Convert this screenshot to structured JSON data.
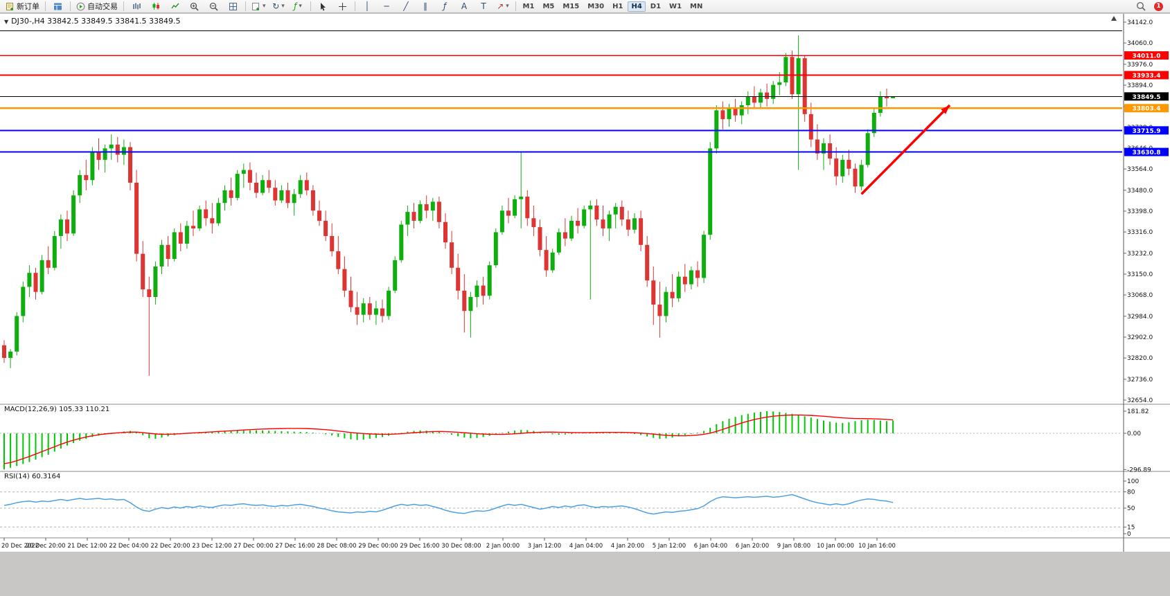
{
  "toolbar": {
    "new_order_label": "新订单",
    "autotrade_label": "自动交易",
    "timeframes": [
      "M1",
      "M5",
      "M15",
      "M30",
      "H1",
      "H4",
      "D1",
      "W1",
      "MN"
    ],
    "active_timeframe": "H4",
    "notification_count": "1"
  },
  "tools": {
    "vline": "│",
    "hline": "─",
    "trend": "╱",
    "channel": "∥",
    "fibo": "ƒ",
    "text": "A",
    "label": "T",
    "arrow": "↗",
    "dropdown": "▾",
    "collapse": "▼",
    "refresh": "↻",
    "shift_marker": "▲"
  },
  "chart": {
    "title": "DJ30-,H4  33842.5 33849.5 33841.5 33849.5",
    "symbol": "DJ30-",
    "period": "H4",
    "ohlc": "33842.5 33849.5 33841.5 33849.5"
  },
  "macd_label": "MACD(12,26,9) 105.33 110.21",
  "rsi_label": "RSI(14) 60.3164",
  "chart_data": {
    "type": "candlestick+indicators",
    "up_color": "#0fae0f",
    "down_color": "#dd3434",
    "price_axis": {
      "min": 32654.0,
      "max": 34142.0,
      "labels": [
        "34142.0",
        "34060.0",
        "33976.0",
        "33894.0",
        "33810.0",
        "33728.0",
        "33646.0",
        "33564.0",
        "33480.0",
        "33398.0",
        "33316.0",
        "33232.0",
        "33150.0",
        "33068.0",
        "32984.0",
        "32902.0",
        "32820.0",
        "32736.0",
        "32654.0"
      ]
    },
    "time_labels": [
      "20 Dec 2022",
      "20 Dec 20:00",
      "21 Dec 12:00",
      "22 Dec 04:00",
      "22 Dec 20:00",
      "23 Dec 12:00",
      "27 Dec 00:00",
      "27 Dec 16:00",
      "28 Dec 08:00",
      "29 Dec 00:00",
      "29 Dec 16:00",
      "30 Dec 08:00",
      "2 Jan 00:00",
      "3 Jan 12:00",
      "4 Jan 04:00",
      "4 Jan 20:00",
      "5 Jan 12:00",
      "6 Jan 04:00",
      "6 Jan 20:00",
      "9 Jan 08:00",
      "10 Jan 00:00",
      "10 Jan 16:00"
    ],
    "hlines": [
      {
        "price": 34108,
        "color": "#000000",
        "width": 1,
        "label": null
      },
      {
        "price": 34011.0,
        "color": "#ff0000",
        "width": 1.6,
        "label": "34011.0"
      },
      {
        "price": 33933.4,
        "color": "#ff0000",
        "width": 1.6,
        "label": "33933.4"
      },
      {
        "price": 33849.5,
        "color": "#000000",
        "width": 1,
        "label": "33849.5"
      },
      {
        "price": 33803.4,
        "color": "#ff9800",
        "width": 2.2,
        "label": "33803.4"
      },
      {
        "price": 33715.9,
        "color": "#0000ff",
        "width": 2.2,
        "label": "33715.9"
      },
      {
        "price": 33630.8,
        "color": "#0000ff",
        "width": 2.2,
        "label": "33630.8"
      }
    ],
    "arrow": {
      "from_bar": 136,
      "from_price": 33465,
      "to_bar": 150,
      "to_price": 33815,
      "color": "#ff0000"
    },
    "candles": [
      [
        32870,
        32890,
        32800,
        32820
      ],
      [
        32820,
        32855,
        32780,
        32845
      ],
      [
        32845,
        33000,
        32830,
        32985
      ],
      [
        32985,
        33120,
        32960,
        33100
      ],
      [
        33100,
        33185,
        33060,
        33155
      ],
      [
        33155,
        33175,
        33050,
        33080
      ],
      [
        33080,
        33225,
        33070,
        33205
      ],
      [
        33205,
        33260,
        33150,
        33175
      ],
      [
        33175,
        33320,
        33165,
        33300
      ],
      [
        33300,
        33385,
        33250,
        33365
      ],
      [
        33365,
        33400,
        33280,
        33310
      ],
      [
        33310,
        33480,
        33300,
        33460
      ],
      [
        33460,
        33560,
        33430,
        33540
      ],
      [
        33540,
        33600,
        33480,
        33520
      ],
      [
        33520,
        33650,
        33500,
        33630
      ],
      [
        33630,
        33685,
        33560,
        33600
      ],
      [
        33600,
        33660,
        33550,
        33645
      ],
      [
        33645,
        33700,
        33600,
        33660
      ],
      [
        33660,
        33690,
        33590,
        33620
      ],
      [
        33620,
        33680,
        33580,
        33650
      ],
      [
        33650,
        33670,
        33480,
        33510
      ],
      [
        33510,
        33560,
        33200,
        33230
      ],
      [
        33230,
        33280,
        33060,
        33090
      ],
      [
        33090,
        33140,
        32750,
        33060
      ],
      [
        33060,
        33200,
        33030,
        33180
      ],
      [
        33180,
        33285,
        33150,
        33265
      ],
      [
        33265,
        33300,
        33180,
        33210
      ],
      [
        33210,
        33330,
        33200,
        33315
      ],
      [
        33315,
        33350,
        33240,
        33270
      ],
      [
        33270,
        33360,
        33250,
        33340
      ],
      [
        33340,
        33400,
        33300,
        33330
      ],
      [
        33330,
        33420,
        33320,
        33405
      ],
      [
        33405,
        33440,
        33340,
        33370
      ],
      [
        33370,
        33430,
        33310,
        33350
      ],
      [
        33350,
        33450,
        33340,
        33430
      ],
      [
        33430,
        33500,
        33400,
        33480
      ],
      [
        33480,
        33530,
        33420,
        33450
      ],
      [
        33450,
        33560,
        33440,
        33545
      ],
      [
        33545,
        33585,
        33490,
        33560
      ],
      [
        33560,
        33590,
        33480,
        33510
      ],
      [
        33510,
        33550,
        33450,
        33470
      ],
      [
        33470,
        33540,
        33460,
        33520
      ],
      [
        33520,
        33560,
        33470,
        33490
      ],
      [
        33490,
        33520,
        33420,
        33440
      ],
      [
        33440,
        33500,
        33430,
        33480
      ],
      [
        33480,
        33510,
        33410,
        33430
      ],
      [
        33430,
        33485,
        33380,
        33465
      ],
      [
        33465,
        33540,
        33450,
        33520
      ],
      [
        33520,
        33550,
        33460,
        33480
      ],
      [
        33480,
        33500,
        33380,
        33400
      ],
      [
        33400,
        33440,
        33340,
        33360
      ],
      [
        33360,
        33400,
        33280,
        33300
      ],
      [
        33300,
        33350,
        33220,
        33240
      ],
      [
        33240,
        33300,
        33150,
        33170
      ],
      [
        33170,
        33220,
        33060,
        33085
      ],
      [
        33085,
        33140,
        33000,
        33020
      ],
      [
        33020,
        33080,
        32950,
        32990
      ],
      [
        32990,
        33055,
        32960,
        33035
      ],
      [
        33035,
        33060,
        32970,
        32990
      ],
      [
        32990,
        33045,
        32950,
        33015
      ],
      [
        33015,
        33050,
        32960,
        32985
      ],
      [
        32985,
        33100,
        32970,
        33085
      ],
      [
        33085,
        33220,
        33075,
        33205
      ],
      [
        33205,
        33360,
        33195,
        33345
      ],
      [
        33345,
        33420,
        33300,
        33395
      ],
      [
        33395,
        33430,
        33330,
        33360
      ],
      [
        33360,
        33440,
        33350,
        33425
      ],
      [
        33425,
        33460,
        33370,
        33400
      ],
      [
        33400,
        33450,
        33360,
        33435
      ],
      [
        33435,
        33455,
        33330,
        33355
      ],
      [
        33355,
        33390,
        33250,
        33275
      ],
      [
        33275,
        33320,
        33150,
        33175
      ],
      [
        33175,
        33230,
        33050,
        33085
      ],
      [
        33085,
        33150,
        32920,
        33005
      ],
      [
        33005,
        33080,
        32900,
        33060
      ],
      [
        33060,
        33125,
        33020,
        33105
      ],
      [
        33105,
        33140,
        33030,
        33065
      ],
      [
        33065,
        33200,
        33050,
        33185
      ],
      [
        33185,
        33330,
        33175,
        33315
      ],
      [
        33315,
        33420,
        33305,
        33400
      ],
      [
        33400,
        33450,
        33350,
        33380
      ],
      [
        33380,
        33460,
        33370,
        33445
      ],
      [
        33445,
        33630,
        33330,
        33455
      ],
      [
        33455,
        33480,
        33340,
        33370
      ],
      [
        33370,
        33420,
        33300,
        33335
      ],
      [
        33335,
        33365,
        33220,
        33245
      ],
      [
        33245,
        33300,
        33140,
        33165
      ],
      [
        33165,
        33250,
        33155,
        33235
      ],
      [
        33235,
        33330,
        33225,
        33315
      ],
      [
        33315,
        33370,
        33260,
        33290
      ],
      [
        33290,
        33380,
        33280,
        33360
      ],
      [
        33360,
        33410,
        33310,
        33340
      ],
      [
        33340,
        33420,
        33330,
        33405
      ],
      [
        33405,
        33440,
        33050,
        33420
      ],
      [
        33420,
        33445,
        33340,
        33365
      ],
      [
        33365,
        33420,
        33300,
        33330
      ],
      [
        33330,
        33400,
        33280,
        33385
      ],
      [
        33385,
        33430,
        33330,
        33415
      ],
      [
        33415,
        33440,
        33340,
        33365
      ],
      [
        33365,
        33400,
        33300,
        33325
      ],
      [
        33325,
        33390,
        33310,
        33370
      ],
      [
        33370,
        33400,
        33240,
        33265
      ],
      [
        33265,
        33300,
        33100,
        33125
      ],
      [
        33125,
        33180,
        32950,
        33030
      ],
      [
        33030,
        33120,
        32900,
        32985
      ],
      [
        32985,
        33100,
        32960,
        33080
      ],
      [
        33080,
        33150,
        33020,
        33055
      ],
      [
        33055,
        33160,
        33040,
        33140
      ],
      [
        33140,
        33190,
        33080,
        33110
      ],
      [
        33110,
        33180,
        33090,
        33165
      ],
      [
        33165,
        33200,
        33100,
        33135
      ],
      [
        33135,
        33320,
        33115,
        33305
      ],
      [
        33305,
        33670,
        33285,
        33645
      ],
      [
        33645,
        33815,
        33625,
        33795
      ],
      [
        33795,
        33830,
        33720,
        33760
      ],
      [
        33760,
        33820,
        33730,
        33805
      ],
      [
        33805,
        33840,
        33750,
        33775
      ],
      [
        33775,
        33830,
        33740,
        33815
      ],
      [
        33815,
        33870,
        33780,
        33850
      ],
      [
        33850,
        33890,
        33800,
        33825
      ],
      [
        33825,
        33880,
        33800,
        33865
      ],
      [
        33865,
        33900,
        33810,
        33840
      ],
      [
        33840,
        33910,
        33820,
        33895
      ],
      [
        33895,
        33945,
        33855,
        33905
      ],
      [
        33905,
        34020,
        33890,
        34005
      ],
      [
        34005,
        34030,
        33840,
        33858
      ],
      [
        33858,
        34090,
        33560,
        34000
      ],
      [
        34000,
        34010,
        33750,
        33780
      ],
      [
        33780,
        33825,
        33650,
        33680
      ],
      [
        33680,
        33740,
        33600,
        33625
      ],
      [
        33625,
        33685,
        33560,
        33665
      ],
      [
        33665,
        33700,
        33580,
        33605
      ],
      [
        33605,
        33650,
        33500,
        33535
      ],
      [
        33535,
        33620,
        33510,
        33600
      ],
      [
        33600,
        33640,
        33540,
        33565
      ],
      [
        33565,
        33585,
        33470,
        33495
      ],
      [
        33495,
        33600,
        33480,
        33580
      ],
      [
        33580,
        33720,
        33570,
        33705
      ],
      [
        33705,
        33800,
        33690,
        33785
      ],
      [
        33785,
        33870,
        33770,
        33850
      ],
      [
        33850,
        33880,
        33810,
        33842.5
      ],
      [
        33842.5,
        33849.5,
        33841.5,
        33849.5
      ]
    ],
    "macd": {
      "params": "12,26,9",
      "current_macd": 105.33,
      "current_signal": 110.21,
      "hist_color": "#00c800",
      "signal_color": "#ff0000",
      "scale_labels": [
        "181.82",
        "0.00",
        "-296.89"
      ],
      "histogram": [
        -296.89,
        -283,
        -268,
        -252,
        -236,
        -216,
        -196,
        -176,
        -150,
        -125,
        -100,
        -80,
        -60,
        -45,
        -30,
        -18,
        -10,
        -5,
        5,
        15,
        20,
        10,
        -15,
        -40,
        -45,
        -35,
        -25,
        -15,
        -8,
        0,
        6,
        10,
        12,
        14,
        15,
        16,
        18,
        20,
        22,
        24,
        25,
        24,
        22,
        20,
        18,
        16,
        14,
        12,
        10,
        6,
        0,
        -8,
        -18,
        -30,
        -42,
        -50,
        -55,
        -52,
        -45,
        -38,
        -30,
        -20,
        -8,
        4,
        14,
        20,
        24,
        22,
        18,
        10,
        0,
        -12,
        -25,
        -35,
        -40,
        -38,
        -30,
        -20,
        -8,
        4,
        14,
        22,
        28,
        26,
        20,
        10,
        0,
        -8,
        -12,
        -10,
        -6,
        0,
        6,
        10,
        12,
        10,
        8,
        6,
        4,
        0,
        -6,
        -14,
        -26,
        -38,
        -45,
        -42,
        -35,
        -25,
        -15,
        -5,
        5,
        20,
        45,
        75,
        100,
        120,
        135,
        150,
        160,
        170,
        176,
        181.82,
        180,
        175,
        168,
        160,
        150,
        140,
        130,
        118,
        105,
        95,
        88,
        85,
        90,
        100,
        108,
        112,
        110,
        105,
        100,
        105.33
      ],
      "signal": [
        -250,
        -240,
        -225,
        -208,
        -190,
        -170,
        -150,
        -130,
        -110,
        -90,
        -72,
        -56,
        -42,
        -30,
        -20,
        -12,
        -5,
        0,
        4,
        8,
        10,
        10,
        6,
        0,
        -5,
        -8,
        -8,
        -6,
        -3,
        0,
        3,
        6,
        9,
        12,
        15,
        18,
        21,
        24,
        27,
        30,
        33,
        35,
        37,
        38,
        39,
        40,
        40,
        40,
        39,
        37,
        34,
        30,
        25,
        19,
        13,
        7,
        2,
        -2,
        -5,
        -7,
        -8,
        -8,
        -6,
        -3,
        1,
        5,
        9,
        12,
        14,
        15,
        14,
        12,
        9,
        5,
        1,
        -3,
        -6,
        -8,
        -9,
        -9,
        -7,
        -4,
        0,
        4,
        7,
        9,
        10,
        10,
        9,
        8,
        7,
        6,
        6,
        6,
        7,
        8,
        8,
        8,
        8,
        7,
        5,
        2,
        -2,
        -7,
        -12,
        -16,
        -19,
        -20,
        -20,
        -18,
        -14,
        -8,
        2,
        16,
        32,
        50,
        68,
        85,
        100,
        113,
        124,
        133,
        140,
        145,
        148,
        150,
        150,
        149,
        147,
        144,
        140,
        136,
        131,
        127,
        124,
        122,
        121,
        120,
        119,
        117,
        114,
        110.21
      ]
    },
    "rsi": {
      "period": 14,
      "current": 60.3164,
      "color": "#4da0e0",
      "levels": [
        80,
        50,
        15
      ],
      "scale_labels": [
        "100",
        "80",
        "50",
        "15",
        "0"
      ],
      "values": [
        55,
        57,
        60,
        62,
        63,
        61,
        63,
        62,
        64,
        66,
        64,
        66,
        68,
        66,
        67,
        68,
        66,
        67,
        65,
        66,
        60,
        52,
        46,
        44,
        48,
        51,
        49,
        52,
        50,
        53,
        51,
        54,
        52,
        51,
        54,
        56,
        55,
        57,
        58,
        56,
        55,
        56,
        54,
        53,
        55,
        54,
        56,
        57,
        55,
        53,
        50,
        48,
        45,
        43,
        42,
        41,
        43,
        42,
        44,
        43,
        46,
        50,
        54,
        57,
        55,
        57,
        55,
        56,
        53,
        50,
        46,
        43,
        41,
        40,
        43,
        45,
        44,
        46,
        50,
        54,
        57,
        55,
        57,
        54,
        51,
        48,
        50,
        53,
        51,
        54,
        52,
        55,
        56,
        53,
        51,
        53,
        52,
        53,
        54,
        52,
        49,
        45,
        41,
        39,
        41,
        43,
        42,
        44,
        45,
        47,
        49,
        54,
        62,
        68,
        71,
        70,
        69,
        70,
        71,
        70,
        71,
        72,
        70,
        71,
        73,
        75,
        71,
        67,
        63,
        60,
        58,
        56,
        58,
        56,
        58,
        62,
        65,
        67,
        66,
        64,
        63,
        60.3164
      ]
    }
  }
}
